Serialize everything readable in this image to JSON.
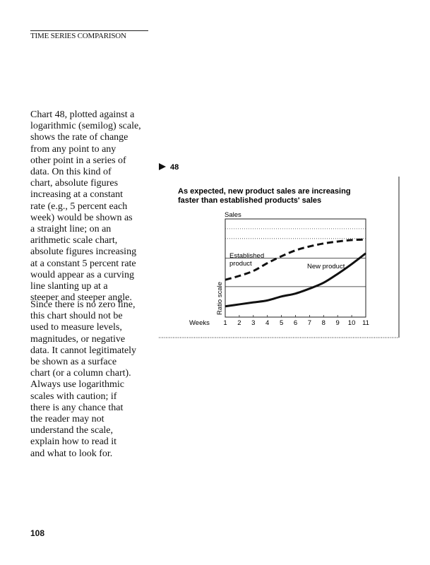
{
  "running_head": "TIME SERIES COMPARISON",
  "paragraphs": [
    [
      "Chart 48, plotted against a",
      "logarithmic (semilog) scale,",
      "shows the rate of change",
      "from any point to any",
      "other point in a series of",
      "data. On this kind of",
      "chart, absolute figures",
      "increasing at a constant",
      "rate (e.g., 5 percent each",
      "week) would be shown as",
      "a straight line; on an",
      "arithmetic scale chart,",
      "absolute figures increasing",
      "at a constant 5 percent rate",
      "would appear as a curving",
      "line slanting up at a",
      "steeper and steeper angle."
    ],
    [
      "Since there is no zero line,",
      "this chart should not be",
      "used to measure levels,",
      "magnitudes, or negative",
      "data. It cannot legitimately",
      "be shown as a surface",
      "chart (or a column chart).",
      "Always use logarithmic",
      "scales with caution; if",
      "there is any chance that",
      "the reader may not",
      "understand the scale,",
      "explain how to read it",
      "and what to look for."
    ]
  ],
  "page_number": "108",
  "chart_data": {
    "type": "line",
    "chart_number": "48",
    "title_lines": [
      "As expected, new product sales are increasing",
      "faster than established products' sales"
    ],
    "y_axis_top_label": "Sales",
    "ylabel": "Ratio scale",
    "y_scale": "log (no tick values printed)",
    "xlabel": "Weeks",
    "x": [
      1,
      2,
      3,
      4,
      5,
      6,
      7,
      8,
      9,
      10,
      11
    ],
    "x_tick_labels": [
      "1",
      "2",
      "3",
      "4",
      "5",
      "6",
      "7",
      "8",
      "9",
      "10",
      "11"
    ],
    "series": [
      {
        "name": "Established product",
        "name_lines": [
          "Established",
          "product"
        ],
        "style": "dashed",
        "values_relative_level": [
          38,
          42,
          47,
          55,
          62,
          68,
          72,
          75,
          77,
          78.5,
          79
        ]
      },
      {
        "name": "New product",
        "style": "solid",
        "values_relative_level": [
          11,
          13,
          15,
          17,
          21,
          24,
          29,
          35,
          44,
          54,
          65
        ]
      }
    ],
    "gridlines": {
      "solid_levels": [
        31,
        60
      ],
      "dotted_levels": [
        80,
        90
      ]
    }
  }
}
